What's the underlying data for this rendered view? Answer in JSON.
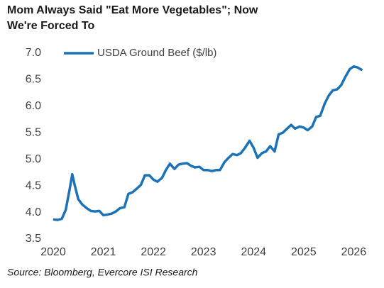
{
  "chart_data": {
    "type": "line",
    "title": [
      "Mom Always Said \"Eat More Vegetables\"; Now",
      "We're Forced To"
    ],
    "source": "Source: Bloomberg, Evercore ISI Research",
    "legend": "top-left",
    "x": [
      2020.0,
      2020.08,
      2020.17,
      2020.25,
      2020.33,
      2020.38,
      2020.42,
      2020.5,
      2020.58,
      2020.67,
      2020.75,
      2020.83,
      2020.92,
      2021.0,
      2021.08,
      2021.17,
      2021.25,
      2021.33,
      2021.42,
      2021.5,
      2021.58,
      2021.67,
      2021.75,
      2021.83,
      2021.92,
      2022.0,
      2022.08,
      2022.17,
      2022.25,
      2022.33,
      2022.42,
      2022.5,
      2022.58,
      2022.67,
      2022.75,
      2022.83,
      2022.92,
      2023.0,
      2023.08,
      2023.17,
      2023.25,
      2023.33,
      2023.42,
      2023.5,
      2023.58,
      2023.67,
      2023.75,
      2023.83,
      2023.92,
      2024.0,
      2024.08,
      2024.17,
      2024.25,
      2024.33,
      2024.42,
      2024.5,
      2024.58,
      2024.67,
      2024.75,
      2024.83,
      2024.92,
      2025.0,
      2025.08,
      2025.17,
      2025.25,
      2025.33,
      2025.42,
      2025.5,
      2025.58,
      2025.67,
      2025.75,
      2025.83,
      2025.92,
      2026.0,
      2026.08,
      2026.17
    ],
    "series": [
      {
        "name": "USDA Ground Beef ($/lb)",
        "color": "#1b72b6",
        "values": [
          3.87,
          3.86,
          3.88,
          4.05,
          4.45,
          4.72,
          4.55,
          4.25,
          4.15,
          4.08,
          4.03,
          4.02,
          4.03,
          3.95,
          3.96,
          3.98,
          4.02,
          4.08,
          4.1,
          4.35,
          4.38,
          4.45,
          4.52,
          4.7,
          4.7,
          4.62,
          4.58,
          4.65,
          4.8,
          4.92,
          4.82,
          4.9,
          4.92,
          4.93,
          4.88,
          4.85,
          4.86,
          4.8,
          4.8,
          4.78,
          4.8,
          4.8,
          4.95,
          5.03,
          5.1,
          5.08,
          5.12,
          5.22,
          5.35,
          5.22,
          5.03,
          5.12,
          5.15,
          5.25,
          5.15,
          5.47,
          5.5,
          5.58,
          5.65,
          5.58,
          5.62,
          5.6,
          5.55,
          5.62,
          5.8,
          5.82,
          6.05,
          6.2,
          6.3,
          6.32,
          6.4,
          6.55,
          6.7,
          6.75,
          6.73,
          6.68
        ]
      }
    ],
    "xlim": [
      2020,
      2026.25
    ],
    "xticks": [
      2020,
      2021,
      2022,
      2023,
      2024,
      2025,
      2026
    ],
    "ylim": [
      3.5,
      7.0
    ],
    "yticks": [
      {
        "value": 3.5,
        "label": "3.5"
      },
      {
        "value": 4,
        "label": "4.0"
      },
      {
        "value": 4.5,
        "label": "4.5"
      },
      {
        "value": 5,
        "label": "5.0"
      },
      {
        "value": 5.5,
        "label": "5.5"
      },
      {
        "value": 6,
        "label": "6.0"
      },
      {
        "value": 6.5,
        "label": "6.5"
      },
      {
        "value": 7,
        "label": "7.0"
      }
    ],
    "grid": false
  }
}
